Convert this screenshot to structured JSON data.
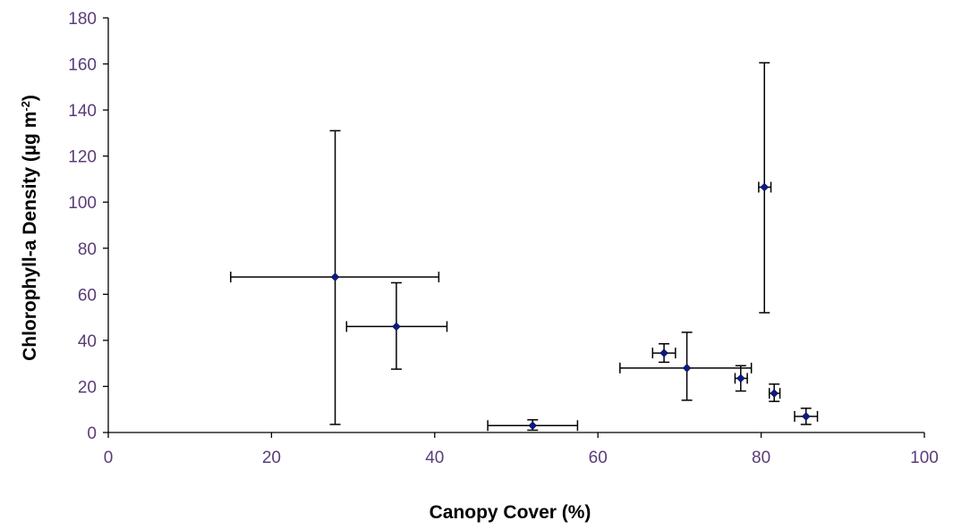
{
  "chart_data": {
    "type": "scatter",
    "title": "",
    "xlabel": "Canopy Cover (%)",
    "ylabel_main": "Chlorophyll-a Density (µg m",
    "ylabel_sup": "-2",
    "ylabel_close": ")",
    "xlim": [
      0,
      100
    ],
    "ylim": [
      0,
      180
    ],
    "x_ticks": [
      0,
      20,
      40,
      60,
      80,
      100
    ],
    "y_ticks": [
      0,
      20,
      40,
      60,
      80,
      100,
      120,
      140,
      160,
      180
    ],
    "grid": false,
    "marker_color": "#0a1a8a",
    "points": [
      {
        "x": 27.8,
        "y": 67.5,
        "x_lo": 15.0,
        "x_hi": 40.5,
        "y_lo": 3.5,
        "y_hi": 131.0
      },
      {
        "x": 35.3,
        "y": 46.0,
        "x_lo": 29.2,
        "x_hi": 41.5,
        "y_lo": 27.5,
        "y_hi": 65.0
      },
      {
        "x": 52.0,
        "y": 3.0,
        "x_lo": 46.5,
        "x_hi": 57.5,
        "y_lo": 1.0,
        "y_hi": 5.5
      },
      {
        "x": 68.1,
        "y": 34.5,
        "x_lo": 66.7,
        "x_hi": 69.5,
        "y_lo": 30.5,
        "y_hi": 38.5
      },
      {
        "x": 70.9,
        "y": 28.0,
        "x_lo": 62.7,
        "x_hi": 78.8,
        "y_lo": 14.0,
        "y_hi": 43.5
      },
      {
        "x": 77.5,
        "y": 23.5,
        "x_lo": 76.8,
        "x_hi": 78.3,
        "y_lo": 18.0,
        "y_hi": 29.0
      },
      {
        "x": 80.4,
        "y": 106.5,
        "x_lo": 79.7,
        "x_hi": 81.2,
        "y_lo": 52.0,
        "y_hi": 160.5
      },
      {
        "x": 81.6,
        "y": 17.0,
        "x_lo": 81.0,
        "x_hi": 82.3,
        "y_lo": 13.5,
        "y_hi": 21.0
      },
      {
        "x": 85.5,
        "y": 7.0,
        "x_lo": 84.1,
        "x_hi": 86.9,
        "y_lo": 3.5,
        "y_hi": 10.5
      }
    ]
  }
}
